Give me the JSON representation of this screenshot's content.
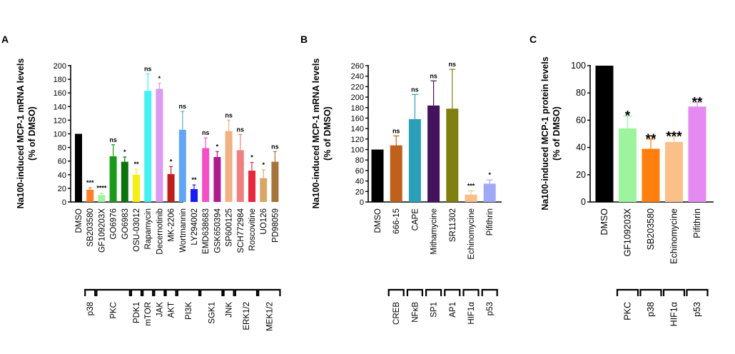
{
  "chart_data": [
    {
      "panel": "A",
      "type": "bar",
      "ylabel": [
        "Na100-induced MCP-1 mRNA levels",
        "(% of DMSO)"
      ],
      "ylim": [
        0,
        200
      ],
      "yticks": [
        0,
        20,
        40,
        60,
        80,
        100,
        120,
        140,
        160,
        180,
        200
      ],
      "categories": [
        "DMSO",
        "SB203580",
        "GF109203X",
        "GO6976",
        "GO6983",
        "OSU-03012",
        "Rapamycin",
        "Decernotinib",
        "MK-2206",
        "Wortmannin",
        "LY294002",
        "EMD638683",
        "GSK650394",
        "SP600125",
        "SCH772984",
        "Roscovitine",
        "UO126",
        "PD98059"
      ],
      "values": [
        100,
        18,
        10,
        67,
        59,
        40,
        163,
        166,
        41,
        106,
        19,
        79,
        66,
        104,
        76,
        46,
        35,
        59
      ],
      "errors": [
        0,
        3,
        3,
        17,
        7,
        8,
        25,
        8,
        11,
        27,
        6,
        15,
        8,
        16,
        23,
        12,
        12,
        15
      ],
      "colors": [
        "#000000",
        "#ff7f27",
        "#9cf59c",
        "#199b19",
        "#0d730d",
        "#f5ef14",
        "#43f1f1",
        "#dd9af1",
        "#c01d1d",
        "#61a6f4",
        "#1c1cf2",
        "#f54fc8",
        "#b01a8e",
        "#f2b182",
        "#f08080",
        "#e8283c",
        "#d8a768",
        "#a5743a"
      ],
      "significance": [
        "",
        "***",
        "****",
        "ns",
        "*",
        "**",
        "ns",
        "*",
        "*",
        "ns",
        "**",
        "ns",
        "*",
        "ns",
        "ns",
        "*",
        "*",
        "ns"
      ],
      "groups": [
        {
          "label": "p38",
          "from": 1,
          "to": 1
        },
        {
          "label": "PKC",
          "from": 2,
          "to": 4
        },
        {
          "label": "PDK1",
          "from": 5,
          "to": 5
        },
        {
          "label": "mTOR",
          "from": 6,
          "to": 6
        },
        {
          "label": "JAK",
          "from": 7,
          "to": 7
        },
        {
          "label": "AKT",
          "from": 8,
          "to": 8
        },
        {
          "label": "PI3K",
          "from": 9,
          "to": 10
        },
        {
          "label": "SGK1",
          "from": 11,
          "to": 12
        },
        {
          "label": "JNK",
          "from": 13,
          "to": 13
        },
        {
          "label": "ERK1/2",
          "from": 14,
          "to": 15
        },
        {
          "label": "MEK1/2",
          "from": 16,
          "to": 17
        }
      ]
    },
    {
      "panel": "B",
      "type": "bar",
      "ylabel": [
        "Na100-induced MCP-1 mRNA levels",
        "(% of DMSO)"
      ],
      "ylim": [
        0,
        260
      ],
      "yticks": [
        0,
        20,
        40,
        60,
        80,
        100,
        120,
        140,
        160,
        180,
        200,
        220,
        240,
        260
      ],
      "categories": [
        "DMSO",
        "666-15",
        "CAPE",
        "Mithamycine",
        "SR11302",
        "Echinomycine",
        "Pifithrin"
      ],
      "values": [
        100,
        108,
        158,
        184,
        178,
        14,
        35
      ],
      "errors": [
        0,
        18,
        47,
        47,
        75,
        7,
        7
      ],
      "colors": [
        "#000000",
        "#c0601a",
        "#2aa0b8",
        "#45125e",
        "#7f7f12",
        "#f9bf86",
        "#a1a8f5"
      ],
      "significance": [
        "",
        "ns",
        "ns",
        "ns",
        "ns",
        "***",
        "*"
      ],
      "groups": [
        {
          "label": "CREB",
          "from": 1,
          "to": 1
        },
        {
          "label": "NFκB",
          "from": 2,
          "to": 2
        },
        {
          "label": "SP1",
          "from": 3,
          "to": 3
        },
        {
          "label": "AP1",
          "from": 4,
          "to": 4
        },
        {
          "label": "HIF1α",
          "from": 5,
          "to": 5
        },
        {
          "label": "p53",
          "from": 6,
          "to": 6
        }
      ]
    },
    {
      "panel": "C",
      "type": "bar",
      "ylabel": [
        "Na100-induced MCP-1 protein levels",
        "(% of DMSO)"
      ],
      "ylim": [
        0,
        100
      ],
      "yticks": [
        0,
        20,
        40,
        60,
        80,
        100
      ],
      "categories": [
        "DMSO",
        "GF109203X",
        "SB203580",
        "Echinomycine",
        "Pifithrin"
      ],
      "values": [
        100,
        54,
        39,
        44,
        70
      ],
      "errors": [
        0,
        9,
        7,
        4,
        3
      ],
      "colors": [
        "#000000",
        "#9cf59c",
        "#ff7f0e",
        "#fbc08a",
        "#e48af0"
      ],
      "significance": [
        "",
        "*",
        "**",
        "***",
        "**"
      ],
      "groups": [
        {
          "label": "PKC",
          "from": 1,
          "to": 1
        },
        {
          "label": "p38",
          "from": 2,
          "to": 2
        },
        {
          "label": "HIF1α",
          "from": 3,
          "to": 3
        },
        {
          "label": "p53",
          "from": 4,
          "to": 4
        }
      ]
    }
  ]
}
